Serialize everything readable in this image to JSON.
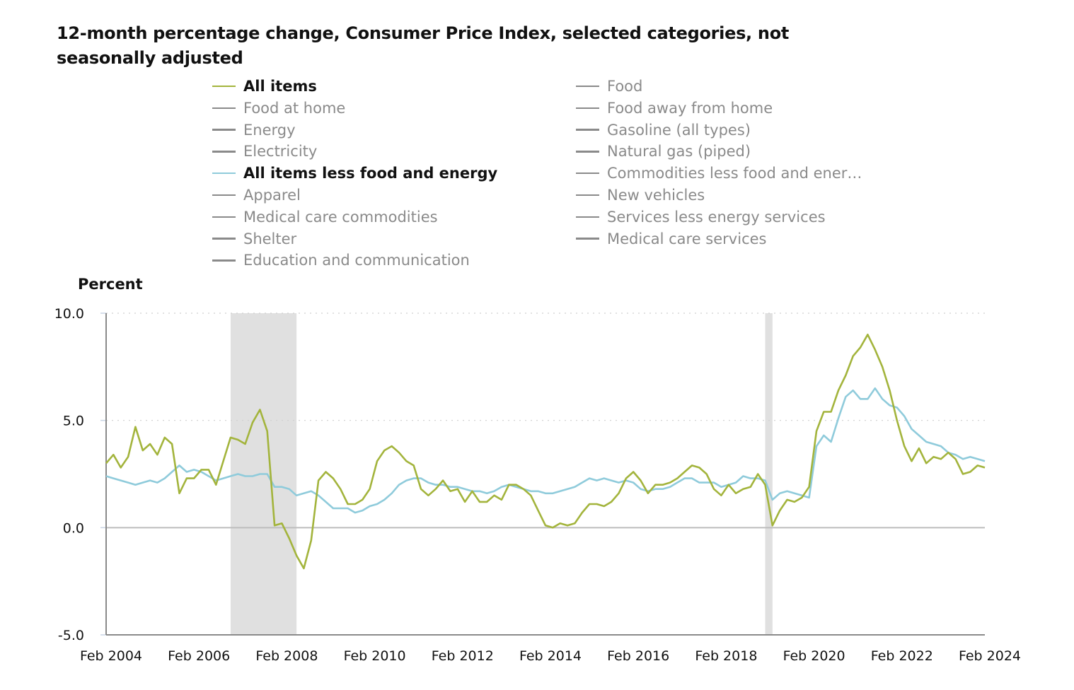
{
  "title": "12-month percentage change, Consumer Price Index, selected categories, not seasonally adjusted",
  "legend": {
    "col1": [
      {
        "label": "All items",
        "active": true,
        "color": "#a3b43c"
      },
      {
        "label": "Food at home",
        "active": false
      },
      {
        "label": "Energy",
        "active": false
      },
      {
        "label": "Electricity",
        "active": false
      },
      {
        "label": "All items less food and energy",
        "active": true,
        "color": "#8fcbdb"
      },
      {
        "label": "Apparel",
        "active": false
      },
      {
        "label": "Medical care commodities",
        "active": false
      },
      {
        "label": "Shelter",
        "active": false
      },
      {
        "label": "Education and communication",
        "active": false
      }
    ],
    "col2": [
      {
        "label": "Food",
        "active": false
      },
      {
        "label": "Food away from home",
        "active": false
      },
      {
        "label": "Gasoline (all types)",
        "active": false
      },
      {
        "label": "Natural gas (piped)",
        "active": false
      },
      {
        "label": "Commodities less food and ener…",
        "active": false
      },
      {
        "label": "New vehicles",
        "active": false
      },
      {
        "label": "Services less energy services",
        "active": false
      },
      {
        "label": "Medical care services",
        "active": false
      }
    ],
    "inactive_color": "#8a8a8a"
  },
  "chart_data": {
    "type": "line",
    "title": "12-month percentage change, Consumer Price Index, selected categories, not seasonally adjusted",
    "ylabel": "Percent",
    "xlabel": "",
    "ylim": [
      -5.0,
      10.0
    ],
    "xlim": [
      "2004-02",
      "2024-02"
    ],
    "yticks": [
      "10.0",
      "5.0",
      "0.0",
      "-5.0"
    ],
    "ytick_values": [
      10,
      5,
      0,
      -5
    ],
    "xticks": [
      "Feb 2004",
      "Feb 2006",
      "Feb 2008",
      "Feb 2010",
      "Feb 2012",
      "Feb 2014",
      "Feb 2016",
      "Feb 2018",
      "Feb 2020",
      "Feb 2022",
      "Feb 2024"
    ],
    "xtick_values": [
      "2004-02",
      "2006-02",
      "2008-02",
      "2010-02",
      "2012-02",
      "2014-02",
      "2016-02",
      "2018-02",
      "2020-02",
      "2022-02",
      "2024-02"
    ],
    "grid": "horizontal dotted at 5.0 and 10.0",
    "recession_shading": [
      [
        "2006-12",
        "2008-06"
      ],
      [
        "2019-02",
        "2019-04"
      ]
    ],
    "shading_color": "#e0e0e0",
    "x": [
      "2004-02",
      "2004-04",
      "2004-06",
      "2004-08",
      "2004-10",
      "2004-12",
      "2005-02",
      "2005-04",
      "2005-06",
      "2005-08",
      "2005-10",
      "2005-12",
      "2006-02",
      "2006-04",
      "2006-06",
      "2006-08",
      "2006-10",
      "2006-12",
      "2007-02",
      "2007-04",
      "2007-06",
      "2007-08",
      "2007-10",
      "2007-12",
      "2008-02",
      "2008-04",
      "2008-06",
      "2008-08",
      "2008-10",
      "2008-12",
      "2009-02",
      "2009-04",
      "2009-06",
      "2009-08",
      "2009-10",
      "2009-12",
      "2010-02",
      "2010-04",
      "2010-06",
      "2010-08",
      "2010-10",
      "2010-12",
      "2011-02",
      "2011-04",
      "2011-06",
      "2011-08",
      "2011-10",
      "2011-12",
      "2012-02",
      "2012-04",
      "2012-06",
      "2012-08",
      "2012-10",
      "2012-12",
      "2013-02",
      "2013-04",
      "2013-06",
      "2013-08",
      "2013-10",
      "2013-12",
      "2014-02",
      "2014-04",
      "2014-06",
      "2014-08",
      "2014-10",
      "2014-12",
      "2015-02",
      "2015-04",
      "2015-06",
      "2015-08",
      "2015-10",
      "2015-12",
      "2016-02",
      "2016-04",
      "2016-06",
      "2016-08",
      "2016-10",
      "2016-12",
      "2017-02",
      "2017-04",
      "2017-06",
      "2017-08",
      "2017-10",
      "2017-12",
      "2018-02",
      "2018-04",
      "2018-06",
      "2018-08",
      "2018-10",
      "2018-12",
      "2019-02",
      "2019-04",
      "2019-06",
      "2019-08",
      "2019-10",
      "2019-12",
      "2020-02",
      "2020-04",
      "2020-06",
      "2020-08",
      "2020-10",
      "2020-12",
      "2021-02",
      "2021-04",
      "2021-06",
      "2021-08",
      "2021-10",
      "2021-12",
      "2022-02",
      "2022-04",
      "2022-06",
      "2022-08",
      "2022-10",
      "2022-12",
      "2023-02",
      "2023-04",
      "2023-06",
      "2023-08",
      "2023-10",
      "2023-12",
      "2024-02"
    ],
    "series": [
      {
        "name": "All items",
        "color": "#a3b43c",
        "values": [
          3.0,
          3.4,
          2.8,
          3.3,
          4.7,
          3.6,
          3.9,
          3.4,
          4.2,
          3.9,
          1.6,
          2.3,
          2.3,
          2.7,
          2.7,
          2.0,
          3.1,
          4.2,
          4.1,
          3.9,
          4.9,
          5.5,
          4.5,
          0.1,
          0.2,
          -0.5,
          -1.3,
          -1.9,
          -0.6,
          2.2,
          2.6,
          2.3,
          1.8,
          1.1,
          1.1,
          1.3,
          1.8,
          3.1,
          3.6,
          3.8,
          3.5,
          3.1,
          2.9,
          1.8,
          1.5,
          1.8,
          2.2,
          1.7,
          1.8,
          1.2,
          1.7,
          1.2,
          1.2,
          1.5,
          1.3,
          2.0,
          2.0,
          1.8,
          1.5,
          0.8,
          0.1,
          0.0,
          0.2,
          0.1,
          0.2,
          0.7,
          1.1,
          1.1,
          1.0,
          1.2,
          1.6,
          2.3,
          2.6,
          2.2,
          1.6,
          2.0,
          2.0,
          2.1,
          2.3,
          2.6,
          2.9,
          2.8,
          2.5,
          1.8,
          1.5,
          2.0,
          1.6,
          1.8,
          1.9,
          2.5,
          2.0,
          0.1,
          0.8,
          1.3,
          1.2,
          1.4,
          1.9,
          4.5,
          5.4,
          5.4,
          6.4,
          7.1,
          8.0,
          8.4,
          9.0,
          8.3,
          7.5,
          6.4,
          5.0,
          3.8,
          3.1,
          3.7,
          3.0,
          3.3,
          3.2,
          3.5,
          3.2,
          2.5,
          2.6,
          2.9,
          2.8
        ]
      },
      {
        "name": "All items less food and energy",
        "color": "#8fcbdb",
        "values": [
          2.4,
          2.3,
          2.2,
          2.1,
          2.0,
          2.1,
          2.2,
          2.1,
          2.3,
          2.6,
          2.9,
          2.6,
          2.7,
          2.6,
          2.4,
          2.2,
          2.3,
          2.4,
          2.5,
          2.4,
          2.4,
          2.5,
          2.5,
          1.9,
          1.9,
          1.8,
          1.5,
          1.6,
          1.7,
          1.5,
          1.2,
          0.9,
          0.9,
          0.9,
          0.7,
          0.8,
          1.0,
          1.1,
          1.3,
          1.6,
          2.0,
          2.2,
          2.3,
          2.3,
          2.1,
          2.0,
          2.0,
          1.9,
          1.9,
          1.8,
          1.7,
          1.7,
          1.6,
          1.7,
          1.9,
          2.0,
          1.9,
          1.8,
          1.7,
          1.7,
          1.6,
          1.6,
          1.7,
          1.8,
          1.9,
          2.1,
          2.3,
          2.2,
          2.3,
          2.2,
          2.1,
          2.2,
          2.1,
          1.8,
          1.7,
          1.8,
          1.8,
          1.9,
          2.1,
          2.3,
          2.3,
          2.1,
          2.1,
          2.1,
          1.9,
          2.0,
          2.1,
          2.4,
          2.3,
          2.3,
          2.2,
          1.3,
          1.6,
          1.7,
          1.6,
          1.5,
          1.4,
          3.8,
          4.3,
          4.0,
          5.1,
          6.1,
          6.4,
          6.0,
          6.0,
          6.5,
          6.0,
          5.7,
          5.6,
          5.2,
          4.6,
          4.3,
          4.0,
          3.9,
          3.8,
          3.5,
          3.4,
          3.2,
          3.3,
          3.2,
          3.1
        ]
      }
    ]
  }
}
